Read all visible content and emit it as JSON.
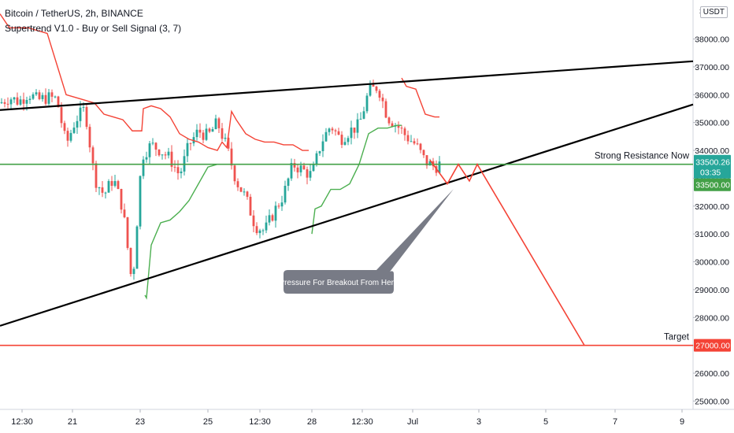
{
  "header": {
    "title": "Bitcoin / TetherUS, 2h, BINANCE",
    "indicator": "Supertrend V1.0 - Buy or Sell Signal (3, 7)",
    "currency": "USDT"
  },
  "colors": {
    "up": "#26a69a",
    "down": "#ef5350",
    "supertrend_up": "#4caf50",
    "supertrend_down": "#f44336",
    "trendline": "#000000",
    "resistance_line": "#43a047",
    "target_line": "#f44336",
    "projection": "#f44336",
    "price_badge": "#26a69a",
    "level_badge": "#43a047",
    "target_badge": "#f44336",
    "callout": "#787b86"
  },
  "chart_data": {
    "type": "candlestick",
    "title": "Bitcoin / TetherUS, 2h, BINANCE",
    "y_axis": {
      "range": [
        24700,
        39400
      ],
      "ticks": [
        "25000.00",
        "26000.00",
        "27000.00",
        "28000.00",
        "29000.00",
        "30000.00",
        "31000.00",
        "32000.00",
        "33000.00",
        "34000.00",
        "35000.00",
        "36000.00",
        "37000.00",
        "38000.00"
      ],
      "top_partial": "3"
    },
    "x_axis": {
      "labels": [
        "12:30",
        "21",
        "23",
        "25",
        "12:30",
        "28",
        "12:30",
        "Jul",
        "3",
        "5",
        "7",
        "9"
      ]
    },
    "close_path": [
      [
        0,
        35700
      ],
      [
        12,
        35900
      ],
      [
        24,
        35750
      ],
      [
        36,
        36050
      ],
      [
        48,
        35800
      ],
      [
        60,
        35900
      ],
      [
        72,
        35850
      ],
      [
        84,
        34200
      ],
      [
        96,
        35100
      ],
      [
        108,
        35500
      ],
      [
        120,
        33000
      ],
      [
        132,
        32400
      ],
      [
        144,
        33000
      ],
      [
        156,
        31900
      ],
      [
        168,
        29100
      ],
      [
        180,
        33800
      ],
      [
        192,
        34200
      ],
      [
        204,
        34000
      ],
      [
        216,
        33700
      ],
      [
        228,
        33100
      ],
      [
        240,
        34200
      ],
      [
        252,
        34700
      ],
      [
        264,
        34500
      ],
      [
        276,
        35000
      ],
      [
        288,
        34100
      ],
      [
        300,
        32900
      ],
      [
        312,
        32300
      ],
      [
        324,
        31300
      ],
      [
        336,
        31100
      ],
      [
        348,
        31800
      ],
      [
        360,
        32400
      ],
      [
        372,
        33500
      ],
      [
        384,
        33300
      ],
      [
        396,
        33100
      ],
      [
        408,
        34300
      ],
      [
        420,
        34900
      ],
      [
        432,
        34400
      ],
      [
        444,
        34700
      ],
      [
        456,
        34900
      ],
      [
        468,
        36100
      ],
      [
        480,
        36300
      ],
      [
        492,
        35200
      ],
      [
        504,
        34900
      ],
      [
        516,
        34500
      ],
      [
        528,
        34200
      ],
      [
        540,
        33600
      ],
      [
        552,
        33400
      ],
      [
        558,
        33500
      ]
    ],
    "supertrend_down": [
      [
        0,
        38900
      ],
      [
        12,
        38400
      ],
      [
        36,
        38400
      ],
      [
        48,
        38300
      ],
      [
        60,
        38200
      ],
      [
        72,
        37100
      ],
      [
        84,
        36000
      ],
      [
        96,
        35900
      ],
      [
        108,
        35800
      ],
      [
        120,
        35700
      ],
      [
        132,
        35300
      ],
      [
        144,
        35200
      ],
      [
        156,
        35100
      ],
      [
        168,
        34700
      ],
      [
        180,
        34700
      ],
      [
        182,
        35500
      ],
      [
        192,
        35600
      ],
      [
        204,
        35500
      ],
      [
        216,
        35200
      ],
      [
        228,
        34600
      ],
      [
        240,
        34400
      ],
      [
        252,
        34300
      ],
      [
        264,
        34100
      ],
      [
        276,
        34000
      ],
      [
        282,
        34300
      ],
      [
        288,
        34100
      ],
      [
        294,
        35400
      ],
      [
        300,
        35100
      ],
      [
        312,
        34600
      ],
      [
        324,
        34400
      ],
      [
        336,
        34300
      ],
      [
        348,
        34300
      ],
      [
        360,
        34200
      ],
      [
        372,
        34200
      ],
      [
        384,
        34000
      ],
      [
        392,
        34000
      ]
    ],
    "supertrend_down_2": [
      [
        510,
        36600
      ],
      [
        516,
        36300
      ],
      [
        528,
        36200
      ],
      [
        540,
        35300
      ],
      [
        552,
        35200
      ],
      [
        558,
        35200
      ]
    ],
    "supertrend_up": [
      [
        184,
        28800
      ],
      [
        186,
        28700
      ],
      [
        192,
        30600
      ],
      [
        204,
        31400
      ],
      [
        216,
        31500
      ],
      [
        228,
        31800
      ],
      [
        240,
        32200
      ],
      [
        252,
        32800
      ],
      [
        264,
        33400
      ],
      [
        276,
        33500
      ],
      [
        288,
        33500
      ]
    ],
    "supertrend_up_2": [
      [
        396,
        31000
      ],
      [
        400,
        31900
      ],
      [
        408,
        32000
      ],
      [
        420,
        32600
      ],
      [
        432,
        32600
      ],
      [
        444,
        32800
      ],
      [
        456,
        33500
      ],
      [
        468,
        34600
      ],
      [
        480,
        34800
      ],
      [
        492,
        34800
      ],
      [
        504,
        34900
      ],
      [
        510,
        34900
      ]
    ],
    "trendlines": [
      {
        "x1": 0,
        "y1": 35450,
        "x2": 880,
        "y2": 37200
      },
      {
        "x1": 0,
        "y1": 27700,
        "x2": 880,
        "y2": 35650
      }
    ],
    "horizontal_lines": [
      {
        "name": "Strong Resistance Now",
        "value": 33500,
        "badge": "33500.00"
      },
      {
        "name": "Target",
        "value": 27000,
        "badge": "27000.00"
      }
    ],
    "projection_path": [
      [
        546,
        33650
      ],
      [
        568,
        32800
      ],
      [
        582,
        33500
      ],
      [
        596,
        32900
      ],
      [
        606,
        33500
      ],
      [
        742,
        27000
      ]
    ],
    "last_price": {
      "value": "33500.26",
      "countdown": "03:35"
    },
    "annotations": {
      "resistance_label": "Strong Resistance Now",
      "target_label": "Target",
      "callout_text": "Pressure For Breakout From Here"
    }
  }
}
